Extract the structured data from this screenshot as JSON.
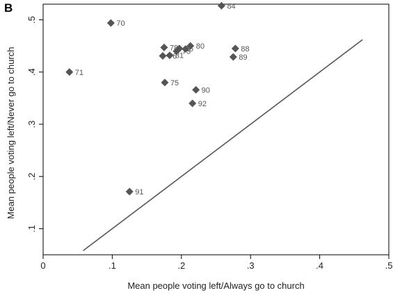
{
  "panel_letter": "B",
  "colors": {
    "marker": "#555555",
    "line": "#555555",
    "axis": "#000000",
    "text": "#222222"
  },
  "chart_data": {
    "type": "scatter",
    "title": "",
    "xlabel": "Mean people voting left/Always go to church",
    "ylabel": "Mean people voting left/Never go to church",
    "xlim": [
      0,
      0.5
    ],
    "ylim": [
      0.05,
      0.53
    ],
    "xticks": [
      0,
      0.1,
      0.2,
      0.3,
      0.4,
      0.5
    ],
    "xtick_labels": [
      "0",
      ".1",
      ".2",
      ".3",
      ".4",
      ".5"
    ],
    "yticks": [
      0.1,
      0.2,
      0.3,
      0.4,
      0.5
    ],
    "ytick_labels": [
      ".1",
      ".2",
      ".3",
      ".4",
      ".5"
    ],
    "grid": false,
    "reference_line": {
      "x": [
        0.058,
        0.462
      ],
      "y": [
        0.058,
        0.462
      ]
    },
    "points": [
      {
        "label": "84",
        "x": 0.258,
        "y": 0.527
      },
      {
        "label": "70",
        "x": 0.098,
        "y": 0.494
      },
      {
        "label": "78",
        "x": 0.175,
        "y": 0.447
      },
      {
        "label": "80",
        "x": 0.213,
        "y": 0.45
      },
      {
        "label": "85",
        "x": 0.197,
        "y": 0.445
      },
      {
        "label": "",
        "x": 0.206,
        "y": 0.444
      },
      {
        "label": "88",
        "x": 0.278,
        "y": 0.445
      },
      {
        "label": "76",
        "x": 0.173,
        "y": 0.431
      },
      {
        "label": "81",
        "x": 0.183,
        "y": 0.432
      },
      {
        "label": "73",
        "x": 0.193,
        "y": 0.44
      },
      {
        "label": "89",
        "x": 0.275,
        "y": 0.429
      },
      {
        "label": "71",
        "x": 0.038,
        "y": 0.4
      },
      {
        "label": "75",
        "x": 0.176,
        "y": 0.38
      },
      {
        "label": "90",
        "x": 0.221,
        "y": 0.366
      },
      {
        "label": "92",
        "x": 0.216,
        "y": 0.34
      },
      {
        "label": "91",
        "x": 0.125,
        "y": 0.171
      }
    ]
  }
}
